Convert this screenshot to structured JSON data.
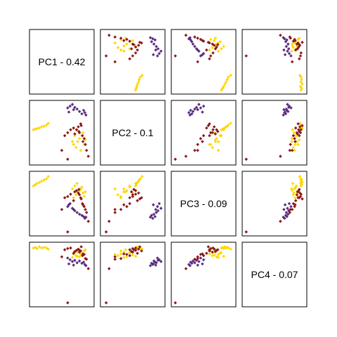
{
  "chart_data": {
    "type": "scatter-matrix",
    "variables": [
      "PC1 - 0.42",
      "PC2 - 0.1",
      "PC3 - 0.09",
      "PC4 - 0.07"
    ],
    "axis_range": [
      0,
      1
    ],
    "grid": false,
    "legend": "none",
    "group_colors": {
      "yellow": "#FFD700",
      "purple": "#5B2C83",
      "darkred": "#8B1A1A"
    },
    "points": [
      {
        "group": "yellow",
        "pc": [
          0.02,
          0.55,
          0.8,
          0.95
        ]
      },
      {
        "group": "yellow",
        "pc": [
          0.05,
          0.56,
          0.82,
          0.96
        ]
      },
      {
        "group": "yellow",
        "pc": [
          0.08,
          0.57,
          0.84,
          0.94
        ]
      },
      {
        "group": "yellow",
        "pc": [
          0.12,
          0.58,
          0.86,
          0.97
        ]
      },
      {
        "group": "yellow",
        "pc": [
          0.16,
          0.6,
          0.88,
          0.95
        ]
      },
      {
        "group": "yellow",
        "pc": [
          0.2,
          0.61,
          0.9,
          0.96
        ]
      },
      {
        "group": "yellow",
        "pc": [
          0.24,
          0.63,
          0.92,
          0.95
        ]
      },
      {
        "group": "yellow",
        "pc": [
          0.27,
          0.66,
          0.96,
          0.93
        ]
      },
      {
        "group": "yellow",
        "pc": [
          0.7,
          0.3,
          0.6,
          0.85
        ]
      },
      {
        "group": "yellow",
        "pc": [
          0.74,
          0.25,
          0.65,
          0.82
        ]
      },
      {
        "group": "yellow",
        "pc": [
          0.77,
          0.35,
          0.7,
          0.88
        ]
      },
      {
        "group": "yellow",
        "pc": [
          0.8,
          0.4,
          0.72,
          0.8
        ]
      },
      {
        "group": "yellow",
        "pc": [
          0.82,
          0.2,
          0.75,
          0.84
        ]
      },
      {
        "group": "yellow",
        "pc": [
          0.84,
          0.45,
          0.78,
          0.86
        ]
      },
      {
        "group": "yellow",
        "pc": [
          0.86,
          0.5,
          0.68,
          0.83
        ]
      },
      {
        "group": "yellow",
        "pc": [
          0.88,
          0.3,
          0.62,
          0.9
        ]
      },
      {
        "group": "yellow",
        "pc": [
          0.72,
          0.45,
          0.8,
          0.87
        ]
      },
      {
        "group": "yellow",
        "pc": [
          0.76,
          0.55,
          0.84,
          0.81
        ]
      },
      {
        "group": "yellow",
        "pc": [
          0.9,
          0.38,
          0.7,
          0.92
        ]
      },
      {
        "group": "yellow",
        "pc": [
          0.68,
          0.35,
          0.75,
          0.79
        ]
      },
      {
        "group": "purple",
        "pc": [
          0.6,
          0.92,
          0.45,
          0.78
        ]
      },
      {
        "group": "purple",
        "pc": [
          0.64,
          0.95,
          0.5,
          0.75
        ]
      },
      {
        "group": "purple",
        "pc": [
          0.68,
          0.98,
          0.42,
          0.72
        ]
      },
      {
        "group": "purple",
        "pc": [
          0.72,
          0.93,
          0.38,
          0.74
        ]
      },
      {
        "group": "purple",
        "pc": [
          0.76,
          0.9,
          0.35,
          0.7
        ]
      },
      {
        "group": "purple",
        "pc": [
          0.8,
          0.86,
          0.32,
          0.73
        ]
      },
      {
        "group": "purple",
        "pc": [
          0.84,
          0.82,
          0.3,
          0.69
        ]
      },
      {
        "group": "purple",
        "pc": [
          0.87,
          0.88,
          0.28,
          0.71
        ]
      },
      {
        "group": "purple",
        "pc": [
          0.89,
          0.84,
          0.25,
          0.67
        ]
      },
      {
        "group": "purple",
        "pc": [
          0.91,
          0.8,
          0.27,
          0.65
        ]
      },
      {
        "group": "purple",
        "pc": [
          0.62,
          0.85,
          0.48,
          0.68
        ]
      },
      {
        "group": "purple",
        "pc": [
          0.7,
          0.89,
          0.4,
          0.66
        ]
      },
      {
        "group": "darkred",
        "pc": [
          0.75,
          0.55,
          0.72,
          0.91
        ]
      },
      {
        "group": "darkred",
        "pc": [
          0.78,
          0.6,
          0.68,
          0.93
        ]
      },
      {
        "group": "darkred",
        "pc": [
          0.8,
          0.5,
          0.65,
          0.88
        ]
      },
      {
        "group": "darkred",
        "pc": [
          0.82,
          0.65,
          0.6,
          0.9
        ]
      },
      {
        "group": "darkred",
        "pc": [
          0.7,
          0.58,
          0.55,
          0.86
        ]
      },
      {
        "group": "darkred",
        "pc": [
          0.85,
          0.45,
          0.5,
          0.82
        ]
      },
      {
        "group": "darkred",
        "pc": [
          0.88,
          0.4,
          0.45,
          0.84
        ]
      },
      {
        "group": "darkred",
        "pc": [
          0.9,
          0.3,
          0.4,
          0.77
        ]
      },
      {
        "group": "darkred",
        "pc": [
          0.92,
          0.2,
          0.35,
          0.76
        ]
      },
      {
        "group": "darkred",
        "pc": [
          0.95,
          0.1,
          0.2,
          0.6
        ]
      },
      {
        "group": "darkred",
        "pc": [
          0.5,
          0.2,
          0.4,
          0.8
        ]
      },
      {
        "group": "darkred",
        "pc": [
          0.55,
          0.45,
          0.6,
          0.92
        ]
      },
      {
        "group": "darkred",
        "pc": [
          0.6,
          0.5,
          0.62,
          0.94
        ]
      },
      {
        "group": "darkred",
        "pc": [
          0.65,
          0.55,
          0.66,
          0.95
        ]
      },
      {
        "group": "darkred",
        "pc": [
          0.83,
          0.62,
          0.58,
          0.97
        ]
      },
      {
        "group": "darkred",
        "pc": [
          0.86,
          0.35,
          0.48,
          0.85
        ]
      },
      {
        "group": "darkred",
        "pc": [
          0.72,
          0.48,
          0.7,
          0.89
        ]
      },
      {
        "group": "darkred",
        "pc": [
          0.79,
          0.52,
          0.74,
          0.92
        ]
      },
      {
        "group": "darkred",
        "pc": [
          0.6,
          0.05,
          0.02,
          0.02
        ]
      }
    ]
  }
}
